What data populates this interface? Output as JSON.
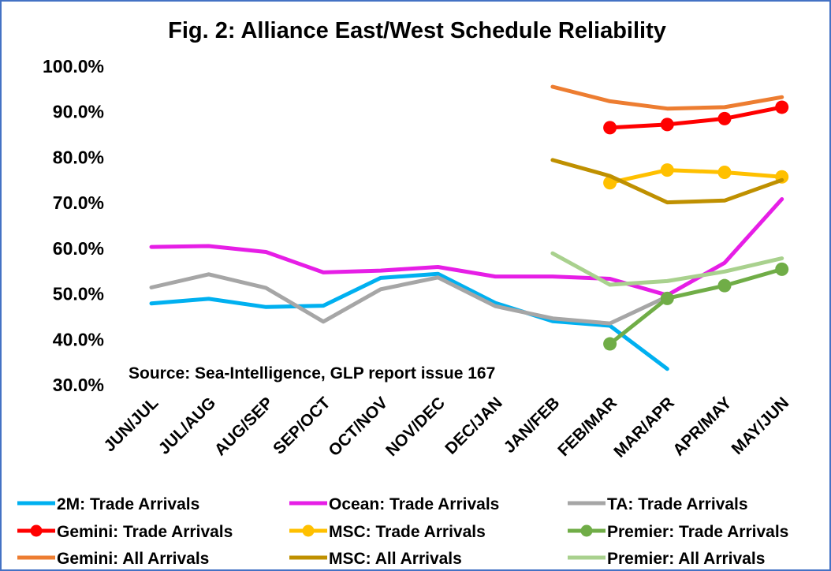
{
  "chart_data": {
    "type": "line",
    "title": "Fig. 2: Alliance East/West Schedule Reliability",
    "xlabel": "",
    "ylabel": "",
    "ylim": [
      30,
      100
    ],
    "y_ticks": [
      "100.0%",
      "90.0%",
      "80.0%",
      "70.0%",
      "60.0%",
      "50.0%",
      "40.0%",
      "30.0%"
    ],
    "categories": [
      "JUN/JUL",
      "JUL/AUG",
      "AUG/SEP",
      "SEP/OCT",
      "OCT/NOV",
      "NOV/DEC",
      "DEC/JAN",
      "JAN/FEB",
      "FEB/MAR",
      "MAR/APR",
      "APR/MAY",
      "MAY/JUN"
    ],
    "annotation": "Source: Sea-Intelligence, GLP report issue 167",
    "grid": false,
    "legend_position": "bottom",
    "series": [
      {
        "name": "2M: Trade Arrivals",
        "color": "#00b0f0",
        "marker": false,
        "values": [
          47.9,
          48.9,
          47.1,
          47.4,
          53.5,
          54.4,
          48.0,
          44.0,
          43.0,
          33.5,
          null,
          null
        ]
      },
      {
        "name": "Ocean: Trade Arrivals",
        "color": "#e61ee6",
        "marker": false,
        "values": [
          60.3,
          60.5,
          59.2,
          54.7,
          55.1,
          55.9,
          53.8,
          53.8,
          53.3,
          49.7,
          56.8,
          70.8
        ]
      },
      {
        "name": "TA: Trade Arrivals",
        "color": "#a6a6a6",
        "marker": false,
        "values": [
          51.4,
          54.3,
          51.3,
          43.9,
          51.0,
          53.6,
          47.3,
          44.6,
          43.5,
          49.4,
          null,
          null
        ]
      },
      {
        "name": "Gemini: Trade Arrivals",
        "color": "#ff0000",
        "marker": true,
        "values": [
          null,
          null,
          null,
          null,
          null,
          null,
          null,
          null,
          86.5,
          87.2,
          88.5,
          91.0
        ]
      },
      {
        "name": "MSC: Trade Arrivals",
        "color": "#ffc000",
        "marker": true,
        "values": [
          null,
          null,
          null,
          null,
          null,
          null,
          null,
          null,
          74.4,
          77.2,
          76.7,
          75.7
        ]
      },
      {
        "name": "Premier: Trade Arrivals",
        "color": "#70ad47",
        "marker": true,
        "values": [
          null,
          null,
          null,
          null,
          null,
          null,
          null,
          null,
          39.0,
          49.0,
          51.8,
          55.4
        ]
      },
      {
        "name": "Gemini: All Arrivals",
        "color": "#ed7d31",
        "marker": false,
        "values": [
          null,
          null,
          null,
          null,
          null,
          null,
          null,
          95.5,
          92.3,
          90.7,
          91.0,
          93.2
        ]
      },
      {
        "name": "MSC: All Arrivals",
        "color": "#bf9000",
        "marker": false,
        "values": [
          null,
          null,
          null,
          null,
          null,
          null,
          null,
          79.4,
          75.9,
          70.1,
          70.5,
          75.0
        ]
      },
      {
        "name": "Premier: All Arrivals",
        "color": "#a9d18e",
        "marker": false,
        "values": [
          null,
          null,
          null,
          null,
          null,
          null,
          null,
          58.9,
          52.0,
          52.8,
          54.9,
          57.8
        ]
      }
    ]
  }
}
